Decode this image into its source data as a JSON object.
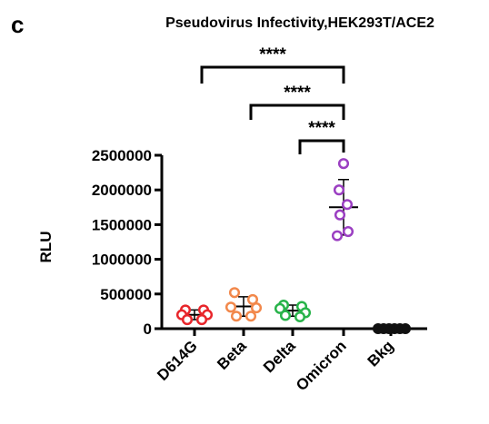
{
  "panel_label": "c",
  "chart_data": {
    "type": "scatter",
    "title": "Pseudovirus Infectivity,HEK293T/ACE2",
    "xlabel": "",
    "ylabel": "RLU",
    "ylim": [
      0,
      2500000
    ],
    "yticks": [
      "0",
      "500000",
      "1000000",
      "1500000",
      "2000000",
      "2500000"
    ],
    "grid": false,
    "categories": [
      "D614G",
      "Beta",
      "Delta",
      "Omicron",
      "Bkg"
    ],
    "colors": [
      "#e8262b",
      "#f2884b",
      "#28b34a",
      "#9b3fc2",
      "#111111"
    ],
    "series": [
      {
        "category": "D614G",
        "points": [
          270000,
          270000,
          200000,
          200000,
          130000,
          130000
        ],
        "mean": 200000,
        "sd": 70000
      },
      {
        "category": "Beta",
        "points": [
          520000,
          420000,
          310000,
          300000,
          180000,
          180000
        ],
        "mean": 320000,
        "sd": 140000
      },
      {
        "category": "Delta",
        "points": [
          340000,
          320000,
          290000,
          230000,
          190000,
          170000
        ],
        "mean": 260000,
        "sd": 80000
      },
      {
        "category": "Omicron",
        "points": [
          2380000,
          2000000,
          1790000,
          1640000,
          1400000,
          1340000
        ],
        "mean": 1750000,
        "sd": 400000
      },
      {
        "category": "Bkg",
        "points": [
          0,
          0,
          0,
          0,
          0,
          0
        ],
        "mean": 0,
        "sd": 0
      }
    ],
    "significance": [
      {
        "from": "D614G",
        "to": "Omicron",
        "label": "****"
      },
      {
        "from": "Beta",
        "to": "Omicron",
        "label": "****"
      },
      {
        "from": "Delta",
        "to": "Omicron",
        "label": "****"
      }
    ]
  }
}
